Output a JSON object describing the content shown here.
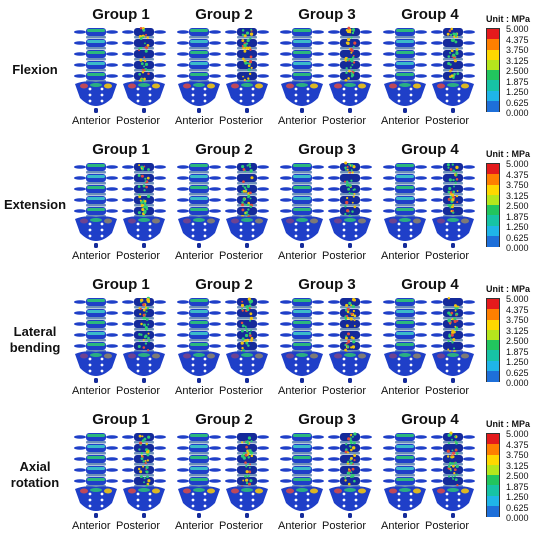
{
  "groups": [
    "Group 1",
    "Group 2",
    "Group 3",
    "Group 4"
  ],
  "views": [
    "Anterior",
    "Posterior"
  ],
  "rows": [
    {
      "label": "Flexion"
    },
    {
      "label": "Extension"
    },
    {
      "label": "Lateral\nbending"
    },
    {
      "label": "Axial\nrotation"
    }
  ],
  "legend": {
    "unit": "Unit : MPa",
    "ticks": [
      "5.000",
      "4.375",
      "3.750",
      "3.125",
      "2.500",
      "1.875",
      "1.250",
      "0.625",
      "0.000"
    ],
    "colors": [
      "#e41a1c",
      "#ff7f00",
      "#ffd700",
      "#b5e61d",
      "#22c55e",
      "#17c3a5",
      "#1fb5e8",
      "#1e6fd9",
      "#1a2dbd"
    ]
  },
  "palette": {
    "bone_base": "#1f3fc8",
    "bone_dark": "#142a9a",
    "disc": "#6c8fb8",
    "stress_mid": "#2ecc71",
    "stress_high": "#f1c40f",
    "stress_peak": "#e74c3c",
    "stress_cyan": "#3fd0c9"
  }
}
